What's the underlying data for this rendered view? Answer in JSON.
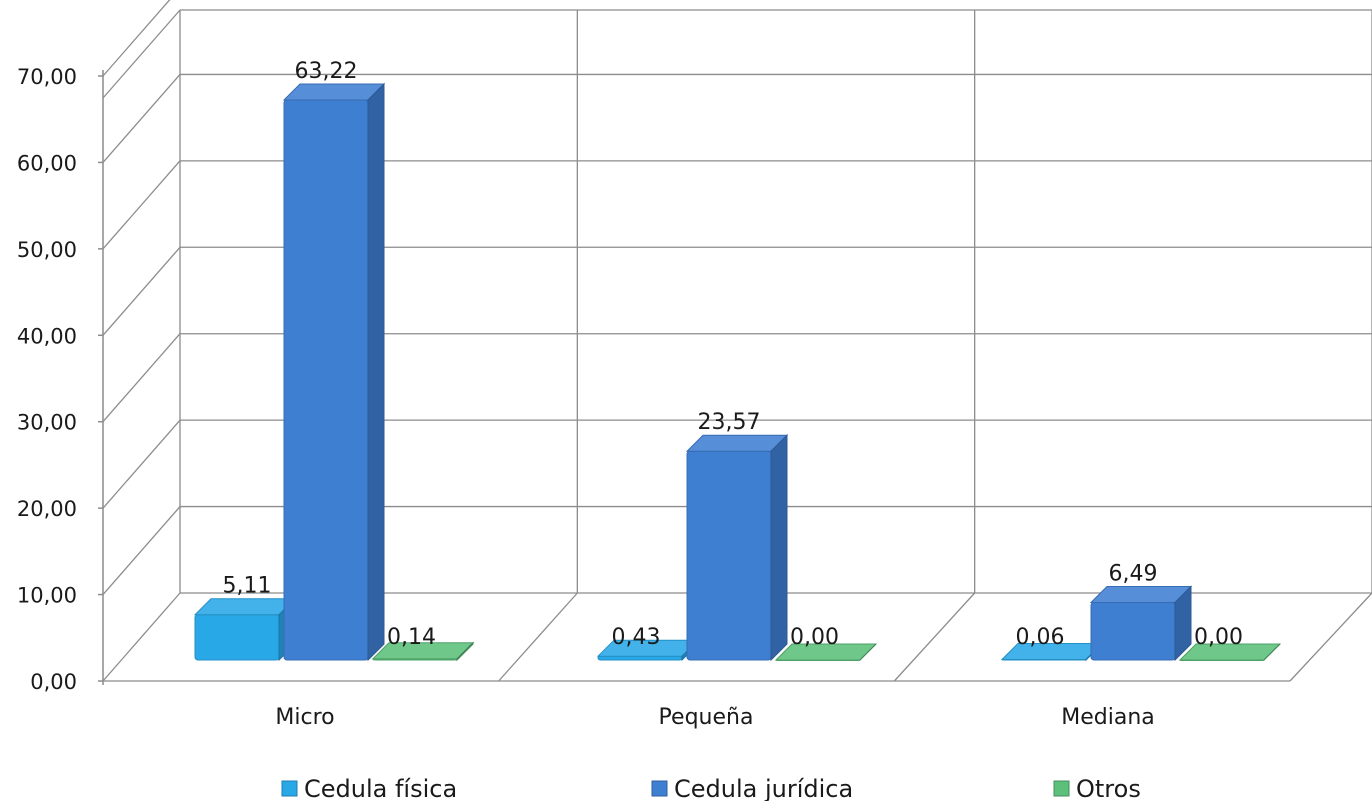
{
  "chart_data": {
    "type": "bar",
    "categories": [
      "Micro",
      "Pequeña",
      "Mediana"
    ],
    "series": [
      {
        "name": "Cedula física",
        "values": [
          5.11,
          0.43,
          0.06
        ],
        "color": "#29a8e8"
      },
      {
        "name": "Cedula jurídica",
        "values": [
          63.22,
          23.57,
          6.49
        ],
        "color": "#3f7fd2"
      },
      {
        "name": "Otros",
        "values": [
          0.14,
          0.0,
          0.0
        ],
        "color": "#5cbf7a"
      }
    ],
    "data_labels": [
      [
        "5,11",
        "0,43",
        "0,06"
      ],
      [
        "63,22",
        "23,57",
        "6,49"
      ],
      [
        "0,14",
        "0,00",
        "0,00"
      ]
    ],
    "y_ticks": [
      "0,00",
      "10,00",
      "20,00",
      "30,00",
      "40,00",
      "50,00",
      "60,00",
      "70,00"
    ],
    "ylim": [
      0,
      70
    ],
    "grid": true,
    "three_d": true,
    "legend_position": "bottom",
    "title": "",
    "xlabel": "",
    "ylabel": ""
  }
}
